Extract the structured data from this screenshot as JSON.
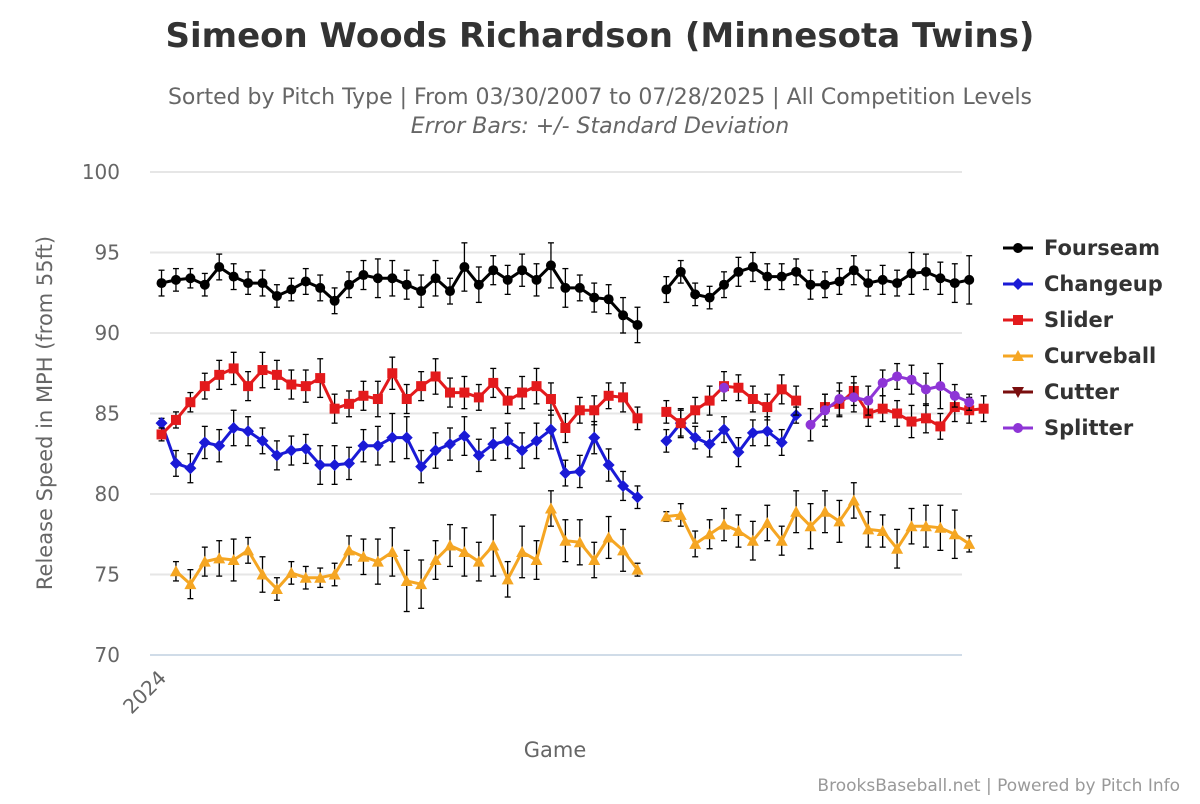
{
  "chart_data": {
    "type": "line",
    "title": "Simeon Woods Richardson (Minnesota Twins)",
    "subtitle": "Sorted by Pitch Type | From 03/30/2007 to 07/28/2025 | All Competition Levels",
    "subtitle2": "Error Bars: +/- Standard Deviation",
    "xlabel": "Game",
    "ylabel": "Release Speed in MPH (from 55ft)",
    "x_tick_labels": [
      {
        "game": 1,
        "label": "2024"
      }
    ],
    "ylim": [
      70,
      100
    ],
    "yticks": [
      70,
      75,
      80,
      85,
      90,
      95,
      100
    ],
    "xlim": [
      0.2,
      56.5
    ],
    "grid": true,
    "legend_position": "right",
    "credits": "BrooksBaseball.net | Powered by Pitch Info",
    "series": [
      {
        "name": "Fourseam",
        "color": "#000000",
        "marker": "circle",
        "segments": [
          {
            "start": 1,
            "values": [
              93.1,
              93.3,
              93.4,
              93.0,
              94.1,
              93.5,
              93.1,
              93.1,
              92.3,
              92.7,
              93.2,
              92.8,
              92.0,
              93.0,
              93.6,
              93.4,
              93.4,
              93.0,
              92.6,
              93.4,
              92.6,
              94.1,
              93.0,
              93.9,
              93.3,
              93.9,
              93.3,
              94.2,
              92.8,
              92.8,
              92.2,
              92.1,
              91.1,
              90.5
            ],
            "errors": [
              0.8,
              0.7,
              0.6,
              0.7,
              0.8,
              0.8,
              0.7,
              0.8,
              0.7,
              0.7,
              0.8,
              0.8,
              0.8,
              0.8,
              0.9,
              1.2,
              1.1,
              0.9,
              1.0,
              1.1,
              0.8,
              1.5,
              1.1,
              0.9,
              0.9,
              1.0,
              1.0,
              1.4,
              1.2,
              0.8,
              0.9,
              0.9,
              1.1,
              1.1
            ]
          },
          {
            "start": 36,
            "values": [
              92.7,
              93.8,
              92.4,
              92.2,
              93.0,
              93.8,
              94.1,
              93.5,
              93.5,
              93.8,
              93.0,
              93.0,
              93.2,
              93.9,
              93.1,
              93.3,
              93.1,
              93.7,
              93.8,
              93.4,
              93.1,
              93.3
            ],
            "errors": [
              0.8,
              0.7,
              0.7,
              0.7,
              0.8,
              0.9,
              0.9,
              0.8,
              0.8,
              0.8,
              0.9,
              0.8,
              0.8,
              0.9,
              0.8,
              0.9,
              0.8,
              1.3,
              1.1,
              1.0,
              1.2,
              1.5
            ]
          }
        ]
      },
      {
        "name": "Changeup",
        "color": "#1a1ad6",
        "marker": "diamond",
        "segments": [
          {
            "start": 1,
            "values": [
              84.4,
              81.9,
              81.6,
              83.2,
              83.0,
              84.1,
              83.9,
              83.3,
              82.4,
              82.7,
              82.8,
              81.8,
              81.8,
              81.9,
              83.0,
              83.0,
              83.5,
              83.5,
              81.7,
              82.7,
              83.1,
              83.6,
              82.4,
              83.1,
              83.3,
              82.7,
              83.3,
              84.0,
              81.3,
              81.4,
              83.5,
              81.8,
              80.5,
              79.8
            ],
            "errors": [
              0.3,
              0.8,
              0.9,
              1.0,
              1.0,
              1.1,
              0.9,
              0.8,
              0.9,
              0.9,
              0.9,
              1.2,
              1.2,
              1.0,
              1.0,
              1.2,
              1.5,
              1.3,
              1.0,
              1.1,
              1.0,
              1.2,
              1.0,
              1.0,
              1.1,
              1.1,
              1.1,
              1.2,
              0.8,
              1.0,
              1.0,
              1.0,
              0.9,
              0.7
            ]
          },
          {
            "start": 36,
            "values": [
              83.3,
              84.4,
              83.5,
              83.1,
              84.0,
              82.6,
              83.8,
              83.9,
              83.2,
              84.9
            ],
            "errors": [
              0.7,
              0.8,
              0.7,
              0.8,
              0.8,
              0.9,
              0.8,
              0.9,
              0.8,
              0.5
            ]
          }
        ]
      },
      {
        "name": "Slider",
        "color": "#e31a1c",
        "marker": "square",
        "segments": [
          {
            "start": 1,
            "values": [
              83.7,
              84.6,
              85.7,
              86.7,
              87.4,
              87.8,
              86.7,
              87.7,
              87.4,
              86.8,
              86.7,
              87.2,
              85.3,
              85.6,
              86.1,
              85.9,
              87.5,
              85.9,
              86.7,
              87.3,
              86.3,
              86.3,
              86.0,
              86.9,
              85.8,
              86.3,
              86.7,
              85.9,
              84.1,
              85.2,
              85.2,
              86.1,
              86.0,
              84.7
            ],
            "errors": [
              0.4,
              0.5,
              0.6,
              0.8,
              0.9,
              1.0,
              0.9,
              1.1,
              0.9,
              0.9,
              1.0,
              1.2,
              0.9,
              0.8,
              0.9,
              1.1,
              1.0,
              0.9,
              0.9,
              1.1,
              0.9,
              1.0,
              0.8,
              0.9,
              0.8,
              1.0,
              1.1,
              1.0,
              0.9,
              0.8,
              0.9,
              0.8,
              0.9,
              0.7
            ]
          },
          {
            "start": 36,
            "values": [
              85.1,
              84.4,
              85.2,
              85.8,
              86.7,
              86.6,
              85.9,
              85.4,
              86.5,
              85.8,
              null,
              85.4,
              85.6,
              86.4,
              85.0,
              85.3,
              85.0,
              84.5,
              84.7,
              84.2,
              85.4,
              85.2,
              85.3
            ],
            "errors": [
              0.7,
              0.9,
              0.8,
              0.9,
              0.9,
              0.8,
              0.8,
              0.8,
              0.9,
              0.9,
              null,
              0.8,
              0.8,
              0.9,
              0.8,
              0.8,
              0.8,
              1.0,
              0.9,
              0.8,
              0.9,
              0.8,
              0.8
            ]
          }
        ]
      },
      {
        "name": "Curveball",
        "color": "#f5a623",
        "marker": "triangle",
        "segments": [
          {
            "start": 2,
            "values": [
              75.2,
              74.4,
              75.8,
              76.0,
              75.9,
              76.5,
              75.0,
              74.1,
              75.1,
              74.8,
              74.8,
              75.0,
              76.5,
              76.1,
              75.8,
              76.4,
              74.6,
              74.4,
              75.9,
              76.8,
              76.4,
              75.8,
              76.8,
              74.7,
              76.4,
              75.9,
              79.1,
              77.1,
              77.0,
              75.9,
              77.3,
              76.5,
              75.3
            ],
            "errors": [
              0.6,
              0.9,
              0.9,
              1.1,
              1.3,
              0.8,
              1.1,
              0.7,
              0.7,
              0.7,
              0.6,
              0.7,
              0.9,
              1.1,
              1.4,
              1.5,
              1.9,
              1.5,
              1.2,
              1.3,
              1.5,
              1.2,
              1.9,
              1.1,
              1.6,
              1.2,
              1.1,
              1.3,
              1.4,
              1.1,
              1.3,
              1.3,
              0.4
            ]
          },
          {
            "start": 36,
            "values": [
              78.6,
              78.7,
              76.9,
              77.5,
              78.1,
              77.7,
              77.1,
              78.2,
              77.1,
              78.9,
              78.0,
              78.9,
              78.3,
              79.6,
              77.8,
              77.7,
              76.6,
              78.0,
              78.0,
              77.9,
              77.5,
              76.9
            ],
            "errors": [
              0.3,
              0.7,
              0.8,
              0.9,
              1.0,
              1.0,
              1.2,
              1.1,
              0.9,
              1.3,
              1.4,
              1.3,
              1.3,
              1.1,
              1.1,
              1.0,
              1.2,
              1.1,
              1.3,
              1.4,
              1.5,
              0.5
            ]
          }
        ]
      },
      {
        "name": "Cutter",
        "color": "#7a0e0e",
        "marker": "triangle-down",
        "segments": []
      },
      {
        "name": "Splitter",
        "color": "#8e35d6",
        "marker": "circle",
        "segments": [
          {
            "start": 40,
            "values": [
              86.6
            ],
            "errors": [
              0
            ]
          },
          {
            "start": 46,
            "values": [
              84.3,
              85.2,
              85.9,
              86.0,
              85.8,
              86.9,
              87.3,
              87.1,
              86.5,
              86.7,
              86.1,
              85.7
            ],
            "errors": [
              1.0,
              1.0,
              1.0,
              0.9,
              0.9,
              0.8,
              0.8,
              0.9,
              1.0,
              1.4,
              0.7,
              0.5
            ]
          }
        ]
      }
    ]
  }
}
